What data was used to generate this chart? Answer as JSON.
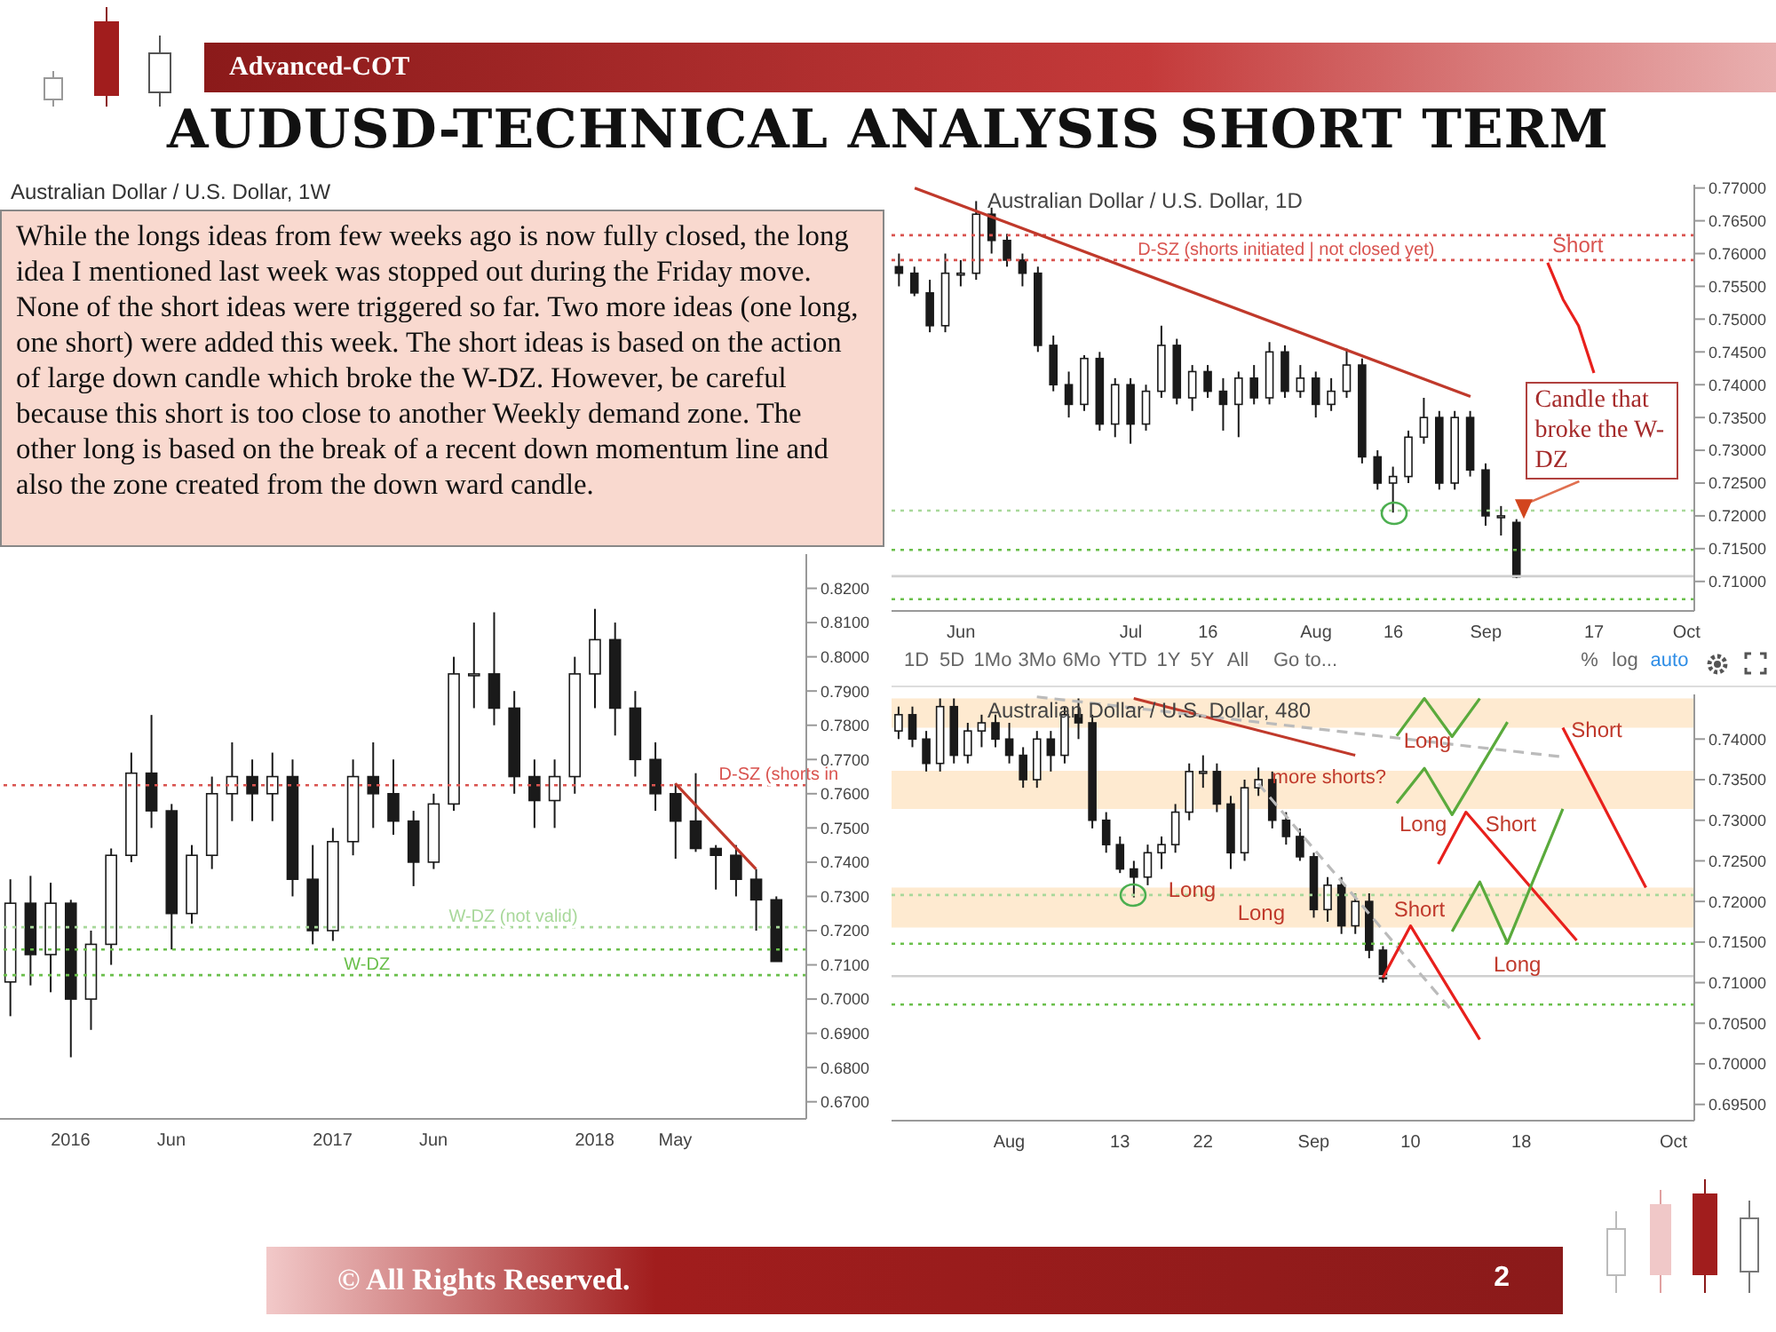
{
  "chart_data": [
    {
      "type": "other",
      "title": "AUDUSD-TECHNICAL ANALYSIS SHORT TERM",
      "subtitle": "Advanced-COT",
      "annotations": [
        "© All Rights Reserved.",
        "2"
      ]
    },
    {
      "type": "candlestick",
      "title": "Australian Dollar / U.S. Dollar, 1W",
      "color": "#1a1a1a",
      "categories": [
        null,
        null,
        null,
        "2016",
        null,
        null,
        null,
        null,
        "Jun",
        null,
        null,
        null,
        null,
        null,
        null,
        null,
        "2017",
        null,
        null,
        null,
        null,
        "Jun",
        null,
        null,
        null,
        null,
        null,
        null,
        null,
        "2018",
        null,
        null,
        null,
        "May",
        null,
        null,
        null,
        null,
        null,
        null
      ],
      "ohlc": [
        [
          0.705,
          0.735,
          0.695,
          0.728
        ],
        [
          0.728,
          0.736,
          0.704,
          0.713
        ],
        [
          0.713,
          0.734,
          0.702,
          0.728
        ],
        [
          0.728,
          0.729,
          0.683,
          0.7
        ],
        [
          0.7,
          0.72,
          0.691,
          0.716
        ],
        [
          0.716,
          0.744,
          0.71,
          0.742
        ],
        [
          0.742,
          0.772,
          0.74,
          0.766
        ],
        [
          0.766,
          0.783,
          0.75,
          0.755
        ],
        [
          0.755,
          0.757,
          0.7145,
          0.725
        ],
        [
          0.725,
          0.745,
          0.722,
          0.742
        ],
        [
          0.742,
          0.765,
          0.738,
          0.76
        ],
        [
          0.76,
          0.775,
          0.752,
          0.765
        ],
        [
          0.765,
          0.77,
          0.752,
          0.76
        ],
        [
          0.76,
          0.772,
          0.752,
          0.765
        ],
        [
          0.765,
          0.77,
          0.73,
          0.735
        ],
        [
          0.735,
          0.745,
          0.716,
          0.72
        ],
        [
          0.72,
          0.75,
          0.717,
          0.746
        ],
        [
          0.746,
          0.77,
          0.742,
          0.765
        ],
        [
          0.765,
          0.775,
          0.75,
          0.76
        ],
        [
          0.76,
          0.77,
          0.748,
          0.752
        ],
        [
          0.752,
          0.755,
          0.733,
          0.74
        ],
        [
          0.74,
          0.76,
          0.738,
          0.757
        ],
        [
          0.757,
          0.8,
          0.755,
          0.795
        ],
        [
          0.795,
          0.81,
          0.785,
          0.795
        ],
        [
          0.795,
          0.813,
          0.78,
          0.785
        ],
        [
          0.785,
          0.79,
          0.76,
          0.765
        ],
        [
          0.765,
          0.77,
          0.75,
          0.758
        ],
        [
          0.758,
          0.77,
          0.75,
          0.765
        ],
        [
          0.765,
          0.8,
          0.76,
          0.795
        ],
        [
          0.795,
          0.814,
          0.785,
          0.805
        ],
        [
          0.805,
          0.81,
          0.777,
          0.785
        ],
        [
          0.785,
          0.79,
          0.765,
          0.77
        ],
        [
          0.77,
          0.775,
          0.755,
          0.76
        ],
        [
          0.76,
          0.763,
          0.741,
          0.752
        ],
        [
          0.752,
          0.766,
          0.743,
          0.744
        ],
        [
          0.744,
          0.745,
          0.732,
          0.742
        ],
        [
          0.742,
          0.745,
          0.73,
          0.735
        ],
        [
          0.735,
          0.738,
          0.72,
          0.729
        ],
        [
          0.729,
          0.73,
          0.711,
          0.711
        ],
        null
      ],
      "ylim": [
        0.665,
        0.83
      ],
      "yticks": [
        {
          "value": 0.67,
          "label": "0.6700"
        },
        {
          "value": 0.68,
          "label": "0.6800"
        },
        {
          "value": 0.69,
          "label": "0.6900"
        },
        {
          "value": 0.7,
          "label": "0.7000"
        },
        {
          "value": 0.71,
          "label": "0.7100"
        },
        {
          "value": 0.72,
          "label": "0.7200"
        },
        {
          "value": 0.73,
          "label": "0.7300"
        },
        {
          "value": 0.74,
          "label": "0.7400"
        },
        {
          "value": 0.75,
          "label": "0.7500"
        },
        {
          "value": 0.76,
          "label": "0.7600"
        },
        {
          "value": 0.77,
          "label": "0.7700"
        },
        {
          "value": 0.78,
          "label": "0.7800"
        },
        {
          "value": 0.79,
          "label": "0.7900"
        },
        {
          "value": 0.8,
          "label": "0.8000"
        },
        {
          "value": 0.81,
          "label": "0.8100"
        },
        {
          "value": 0.82,
          "label": "0.8200"
        }
      ],
      "series": [
        {
          "type": "line",
          "color": "#c0392b",
          "values": [
            null,
            null,
            null,
            null,
            null,
            null,
            null,
            null,
            null,
            null,
            null,
            null,
            null,
            null,
            null,
            null,
            null,
            null,
            null,
            null,
            null,
            null,
            null,
            null,
            null,
            null,
            null,
            null,
            null,
            null,
            null,
            null,
            null,
            0.763,
            null,
            null,
            null,
            0.738,
            null,
            null
          ]
        }
      ],
      "ref_lines": [
        {
          "axis": "y",
          "value": 0.7625,
          "label": "D-SZ (shorts in",
          "color": "#d9534f",
          "line_style": "dotted"
        },
        {
          "axis": "y",
          "value": 0.721,
          "label": "W-DZ (not valid)",
          "color": "#a8d89a",
          "line_style": "dotted"
        },
        {
          "axis": "y",
          "value": 0.7145,
          "color": "#6abf4b",
          "line_style": "dotted"
        },
        {
          "axis": "y",
          "value": 0.707,
          "label": "W-DZ",
          "color": "#6abf4b",
          "line_style": "dotted"
        }
      ],
      "annotations": [
        "While the longs ideas from few weeks ago is now fully closed, the long idea I mentioned last week was stopped out during the Friday move. None of the short ideas were triggered so far. Two more ideas (one long, one short) were added this week. The short ideas is based on the action of large down candle which broke the W-DZ. However, be careful because this short is too close to another Weekly demand zone. The other long is based on the break of a recent down momentum line and also the zone created from the down ward candle."
      ]
    },
    {
      "type": "candlestick",
      "title": "Australian Dollar / U.S. Dollar, 1D",
      "color": "#1a1a1a",
      "categories": [
        null,
        null,
        null,
        null,
        "Jun",
        null,
        null,
        null,
        null,
        null,
        null,
        null,
        null,
        null,
        null,
        "Jul",
        null,
        null,
        null,
        null,
        "16",
        null,
        null,
        null,
        null,
        null,
        null,
        "Aug",
        null,
        null,
        null,
        null,
        "16",
        null,
        null,
        null,
        null,
        null,
        "Sep",
        null,
        null,
        null,
        null,
        null,
        null,
        "17",
        null,
        null,
        null,
        null,
        null,
        "Oct"
      ],
      "ohlc": [
        [
          0.758,
          0.76,
          0.755,
          0.757
        ],
        [
          0.757,
          0.758,
          0.7535,
          0.754
        ],
        [
          0.754,
          0.756,
          0.748,
          0.749
        ],
        [
          0.749,
          0.76,
          0.748,
          0.757
        ],
        [
          0.757,
          0.759,
          0.755,
          0.757
        ],
        [
          0.757,
          0.768,
          0.756,
          0.766
        ],
        [
          0.766,
          0.767,
          0.76,
          0.762
        ],
        [
          0.762,
          0.763,
          0.758,
          0.759
        ],
        [
          0.759,
          0.76,
          0.755,
          0.757
        ],
        [
          0.757,
          0.758,
          0.745,
          0.746
        ],
        [
          0.746,
          0.7475,
          0.739,
          0.74
        ],
        [
          0.74,
          0.742,
          0.735,
          0.737
        ],
        [
          0.737,
          0.7445,
          0.736,
          0.744
        ],
        [
          0.744,
          0.745,
          0.733,
          0.734
        ],
        [
          0.734,
          0.741,
          0.732,
          0.74
        ],
        [
          0.74,
          0.741,
          0.731,
          0.734
        ],
        [
          0.734,
          0.74,
          0.733,
          0.739
        ],
        [
          0.739,
          0.749,
          0.738,
          0.746
        ],
        [
          0.746,
          0.747,
          0.737,
          0.738
        ],
        [
          0.738,
          0.743,
          0.736,
          0.742
        ],
        [
          0.742,
          0.743,
          0.738,
          0.739
        ],
        [
          0.739,
          0.741,
          0.733,
          0.737
        ],
        [
          0.737,
          0.742,
          0.732,
          0.741
        ],
        [
          0.741,
          0.743,
          0.737,
          0.738
        ],
        [
          0.738,
          0.7465,
          0.737,
          0.745
        ],
        [
          0.745,
          0.746,
          0.738,
          0.739
        ],
        [
          0.739,
          0.743,
          0.738,
          0.741
        ],
        [
          0.741,
          0.742,
          0.735,
          0.737
        ],
        [
          0.737,
          0.741,
          0.736,
          0.739
        ],
        [
          0.739,
          0.7455,
          0.738,
          0.743
        ],
        [
          0.743,
          0.744,
          0.728,
          0.729
        ],
        [
          0.729,
          0.73,
          0.724,
          0.725
        ],
        [
          0.725,
          0.7275,
          0.7205,
          0.726
        ],
        [
          0.726,
          0.733,
          0.725,
          0.732
        ],
        [
          0.732,
          0.738,
          0.731,
          0.735
        ],
        [
          0.735,
          0.736,
          0.724,
          0.725
        ],
        [
          0.725,
          0.736,
          0.724,
          0.735
        ],
        [
          0.735,
          0.736,
          0.726,
          0.727
        ],
        [
          0.727,
          0.728,
          0.7185,
          0.72
        ],
        [
          0.72,
          0.7215,
          0.717,
          0.72
        ],
        [
          0.719,
          0.7195,
          0.7105,
          0.7107
        ],
        null,
        null,
        null,
        null,
        null,
        null,
        null,
        null,
        null,
        null,
        null
      ],
      "ylim": [
        0.7055,
        0.7705
      ],
      "yticks": [
        {
          "value": 0.71,
          "label": "0.71000"
        },
        {
          "value": 0.715,
          "label": "0.71500"
        },
        {
          "value": 0.72,
          "label": "0.72000"
        },
        {
          "value": 0.725,
          "label": "0.72500"
        },
        {
          "value": 0.73,
          "label": "0.73000"
        },
        {
          "value": 0.735,
          "label": "0.73500"
        },
        {
          "value": 0.74,
          "label": "0.74000"
        },
        {
          "value": 0.745,
          "label": "0.74500"
        },
        {
          "value": 0.75,
          "label": "0.75000"
        },
        {
          "value": 0.755,
          "label": "0.75500"
        },
        {
          "value": 0.76,
          "label": "0.76000"
        },
        {
          "value": 0.765,
          "label": "0.76500"
        },
        {
          "value": 0.77,
          "label": "0.77000"
        }
      ],
      "series": [
        {
          "type": "line",
          "color": "#c0392b",
          "values": [
            null,
            0.77,
            null,
            null,
            null,
            null,
            null,
            null,
            null,
            null,
            null,
            null,
            null,
            null,
            null,
            null,
            null,
            null,
            null,
            null,
            null,
            null,
            null,
            null,
            null,
            null,
            null,
            null,
            null,
            null,
            null,
            null,
            null,
            null,
            null,
            null,
            null,
            0.7382,
            null,
            null,
            null,
            null,
            null,
            null,
            null,
            null,
            null,
            null,
            null,
            null,
            null,
            null
          ]
        },
        {
          "type": "line",
          "color": "#e8201c",
          "values": [
            null,
            null,
            null,
            null,
            null,
            null,
            null,
            null,
            null,
            null,
            null,
            null,
            null,
            null,
            null,
            null,
            null,
            null,
            null,
            null,
            null,
            null,
            null,
            null,
            null,
            null,
            null,
            null,
            null,
            null,
            null,
            null,
            null,
            null,
            null,
            null,
            null,
            null,
            null,
            null,
            null,
            null,
            0.7586,
            0.753,
            0.749,
            0.7418,
            null,
            null,
            null,
            null,
            null,
            null
          ]
        }
      ],
      "ref_lines": [
        {
          "axis": "y",
          "value": 0.7628,
          "label": "D-SZ (shorts initiated | not closed yet)",
          "color": "#d9534f",
          "line_style": "dotted"
        },
        {
          "axis": "y",
          "value": 0.759,
          "color": "#d9534f",
          "line_style": "dotted"
        },
        {
          "axis": "y",
          "value": 0.7208,
          "color": "#a8d89a",
          "line_style": "dotted"
        },
        {
          "axis": "y",
          "value": 0.7148,
          "color": "#6abf4b",
          "line_style": "dotted"
        },
        {
          "axis": "y",
          "value": 0.7073,
          "color": "#6abf4b",
          "line_style": "dotted"
        },
        {
          "axis": "y",
          "value": 0.7108,
          "color": "#cfcfcf",
          "line_style": "solid"
        }
      ],
      "annotations": [
        {
          "text": "Candle that broke the W-DZ",
          "y": 0.7195
        },
        "Short"
      ]
    },
    {
      "type": "candlestick",
      "title": "Australian Dollar / U.S. Dollar, 480",
      "color": "#1a1a1a",
      "categories": [
        null,
        null,
        null,
        null,
        null,
        null,
        null,
        null,
        "Aug",
        null,
        null,
        null,
        null,
        null,
        null,
        null,
        "13",
        null,
        null,
        null,
        null,
        null,
        "22",
        null,
        null,
        null,
        null,
        null,
        null,
        null,
        "Sep",
        null,
        null,
        null,
        null,
        null,
        null,
        "10",
        null,
        null,
        null,
        null,
        null,
        null,
        null,
        "18",
        null,
        null,
        null,
        null,
        null,
        null,
        null,
        null,
        null,
        null,
        "Oct",
        null
      ],
      "ohlc": [
        [
          0.741,
          0.744,
          0.74,
          0.743
        ],
        [
          0.743,
          0.744,
          0.739,
          0.74
        ],
        [
          0.74,
          0.741,
          0.736,
          0.737
        ],
        [
          0.737,
          0.745,
          0.736,
          0.744
        ],
        [
          0.744,
          0.745,
          0.737,
          0.738
        ],
        [
          0.738,
          0.742,
          0.737,
          0.741
        ],
        [
          0.741,
          0.743,
          0.739,
          0.742
        ],
        [
          0.742,
          0.743,
          0.739,
          0.74
        ],
        [
          0.74,
          0.742,
          0.737,
          0.738
        ],
        [
          0.738,
          0.739,
          0.734,
          0.735
        ],
        [
          0.735,
          0.741,
          0.734,
          0.74
        ],
        [
          0.74,
          0.741,
          0.736,
          0.738
        ],
        [
          0.738,
          0.744,
          0.737,
          0.743
        ],
        [
          0.743,
          0.745,
          0.74,
          0.742
        ],
        [
          0.742,
          0.743,
          0.729,
          0.73
        ],
        [
          0.73,
          0.731,
          0.726,
          0.727
        ],
        [
          0.727,
          0.728,
          0.7235,
          0.724
        ],
        [
          0.724,
          0.725,
          0.7205,
          0.723
        ],
        [
          0.723,
          0.727,
          0.722,
          0.726
        ],
        [
          0.726,
          0.728,
          0.724,
          0.727
        ],
        [
          0.727,
          0.732,
          0.726,
          0.731
        ],
        [
          0.731,
          0.737,
          0.73,
          0.736
        ],
        [
          0.736,
          0.738,
          0.734,
          0.736
        ],
        [
          0.736,
          0.737,
          0.731,
          0.732
        ],
        [
          0.732,
          0.733,
          0.724,
          0.726
        ],
        [
          0.726,
          0.735,
          0.725,
          0.734
        ],
        [
          0.734,
          0.7365,
          0.733,
          0.735
        ],
        [
          0.735,
          0.736,
          0.729,
          0.73
        ],
        [
          0.73,
          0.731,
          0.727,
          0.728
        ],
        [
          0.728,
          0.729,
          0.725,
          0.7255
        ],
        [
          0.7255,
          0.726,
          0.718,
          0.719
        ],
        [
          0.719,
          0.723,
          0.7175,
          0.722
        ],
        [
          0.722,
          0.723,
          0.716,
          0.717
        ],
        [
          0.717,
          0.721,
          0.716,
          0.72
        ],
        [
          0.72,
          0.721,
          0.713,
          0.714
        ],
        [
          0.714,
          0.7145,
          0.71,
          0.7105
        ],
        null,
        null,
        null,
        null,
        null,
        null,
        null,
        null,
        null,
        null,
        null,
        null,
        null,
        null,
        null,
        null,
        null,
        null,
        null,
        null,
        null,
        null
      ],
      "ylim": [
        0.693,
        0.7455
      ],
      "yticks": [
        {
          "value": 0.695,
          "label": "0.69500"
        },
        {
          "value": 0.7,
          "label": "0.70000"
        },
        {
          "value": 0.705,
          "label": "0.70500"
        },
        {
          "value": 0.71,
          "label": "0.71000"
        },
        {
          "value": 0.715,
          "label": "0.71500"
        },
        {
          "value": 0.72,
          "label": "0.72000"
        },
        {
          "value": 0.725,
          "label": "0.72500"
        },
        {
          "value": 0.73,
          "label": "0.73000"
        },
        {
          "value": 0.735,
          "label": "0.73500"
        },
        {
          "value": 0.74,
          "label": "0.74000"
        }
      ],
      "series": [
        {
          "type": "line",
          "color": "#c0392b",
          "values": [
            null,
            null,
            null,
            null,
            null,
            null,
            null,
            null,
            null,
            null,
            null,
            null,
            null,
            null,
            null,
            null,
            null,
            0.745,
            null,
            null,
            null,
            null,
            null,
            null,
            null,
            null,
            null,
            null,
            null,
            null,
            null,
            null,
            null,
            0.738,
            null,
            null,
            null,
            null,
            null,
            null,
            null,
            null,
            null,
            null,
            null,
            null,
            null,
            null,
            null,
            null,
            null,
            null,
            null,
            null,
            null,
            null,
            null,
            null
          ]
        },
        {
          "type": "line",
          "color": "#bbbbbb",
          "line_style": "dashed",
          "values": [
            null,
            null,
            null,
            null,
            null,
            null,
            null,
            null,
            null,
            null,
            0.7452,
            null,
            null,
            null,
            null,
            null,
            null,
            null,
            null,
            null,
            null,
            null,
            null,
            null,
            null,
            null,
            null,
            null,
            null,
            null,
            null,
            null,
            null,
            null,
            null,
            null,
            null,
            null,
            null,
            null,
            null,
            null,
            null,
            null,
            null,
            null,
            null,
            null,
            0.7378,
            null,
            null,
            null,
            null,
            null,
            null,
            null,
            null,
            null
          ]
        },
        {
          "type": "line",
          "color": "#bbbbbb",
          "line_style": "dashed",
          "values": [
            null,
            null,
            null,
            null,
            null,
            null,
            null,
            null,
            null,
            null,
            null,
            null,
            null,
            null,
            null,
            null,
            null,
            null,
            null,
            null,
            null,
            null,
            null,
            null,
            null,
            null,
            0.7345,
            null,
            null,
            null,
            null,
            null,
            null,
            null,
            null,
            null,
            null,
            null,
            null,
            null,
            0.7065,
            null,
            null,
            null,
            null,
            null,
            null,
            null,
            null,
            null,
            null,
            null,
            null,
            null,
            null,
            null,
            null,
            null
          ]
        },
        {
          "type": "line",
          "color": "#5aaa3c",
          "values": [
            null,
            null,
            null,
            null,
            null,
            null,
            null,
            null,
            null,
            null,
            null,
            null,
            null,
            null,
            null,
            null,
            null,
            null,
            null,
            null,
            null,
            null,
            null,
            null,
            null,
            null,
            null,
            null,
            null,
            null,
            null,
            null,
            null,
            null,
            null,
            null,
            0.7404,
            null,
            0.745,
            null,
            0.7403,
            null,
            0.745,
            null,
            null,
            null,
            null,
            null,
            null,
            null,
            null,
            null,
            null,
            null,
            null,
            null,
            null,
            null
          ]
        },
        {
          "type": "line",
          "color": "#5aaa3c",
          "values": [
            null,
            null,
            null,
            null,
            null,
            null,
            null,
            null,
            null,
            null,
            null,
            null,
            null,
            null,
            null,
            null,
            null,
            null,
            null,
            null,
            null,
            null,
            null,
            null,
            null,
            null,
            null,
            null,
            null,
            null,
            null,
            null,
            null,
            null,
            null,
            null,
            0.7321,
            null,
            0.7364,
            null,
            0.7307,
            null,
            null,
            null,
            0.7421,
            null,
            null,
            null,
            null,
            null,
            null,
            null,
            null,
            null,
            null,
            null,
            null,
            null
          ]
        },
        {
          "type": "line",
          "color": "#e8201c",
          "values": [
            null,
            null,
            null,
            null,
            null,
            null,
            null,
            null,
            null,
            null,
            null,
            null,
            null,
            null,
            null,
            null,
            null,
            null,
            null,
            null,
            null,
            null,
            null,
            null,
            null,
            null,
            null,
            null,
            null,
            null,
            null,
            null,
            null,
            null,
            null,
            null,
            null,
            null,
            null,
            0.7246,
            null,
            0.731,
            null,
            null,
            null,
            null,
            null,
            null,
            null,
            0.7152,
            null,
            null,
            null,
            null,
            null,
            null,
            null,
            null
          ]
        },
        {
          "type": "line",
          "color": "#5aaa3c",
          "values": [
            null,
            null,
            null,
            null,
            null,
            null,
            null,
            null,
            null,
            null,
            null,
            null,
            null,
            null,
            null,
            null,
            null,
            null,
            null,
            null,
            null,
            null,
            null,
            null,
            null,
            null,
            null,
            null,
            null,
            null,
            null,
            null,
            null,
            null,
            null,
            null,
            null,
            null,
            null,
            null,
            0.7163,
            null,
            0.7224,
            null,
            0.7149,
            null,
            null,
            null,
            0.7314,
            null,
            null,
            null,
            null,
            null,
            null,
            null,
            null,
            null
          ]
        },
        {
          "type": "line",
          "color": "#e8201c",
          "values": [
            null,
            null,
            null,
            null,
            null,
            null,
            null,
            null,
            null,
            null,
            null,
            null,
            null,
            null,
            null,
            null,
            null,
            null,
            null,
            null,
            null,
            null,
            null,
            null,
            null,
            null,
            null,
            null,
            null,
            null,
            null,
            null,
            null,
            null,
            null,
            0.7106,
            null,
            0.717,
            null,
            null,
            null,
            null,
            0.703,
            null,
            null,
            null,
            null,
            null,
            null,
            null,
            null,
            null,
            null,
            null,
            null,
            null,
            null,
            null
          ]
        },
        {
          "type": "line",
          "color": "#e8201c",
          "values": [
            null,
            null,
            null,
            null,
            null,
            null,
            null,
            null,
            null,
            null,
            null,
            null,
            null,
            null,
            null,
            null,
            null,
            null,
            null,
            null,
            null,
            null,
            null,
            null,
            null,
            null,
            null,
            null,
            null,
            null,
            null,
            null,
            null,
            null,
            null,
            null,
            null,
            null,
            null,
            null,
            null,
            null,
            null,
            null,
            null,
            null,
            null,
            null,
            0.7414,
            null,
            null,
            null,
            null,
            null,
            0.7217,
            null,
            null,
            null
          ]
        }
      ],
      "bands": [
        {
          "axis": "y",
          "from": 0.7414,
          "to": 0.745,
          "color": "#fde3c0"
        },
        {
          "axis": "y",
          "from": 0.7314,
          "to": 0.7361,
          "color": "#fde3c0"
        },
        {
          "axis": "y",
          "from": 0.7168,
          "to": 0.7217,
          "color": "#fde3c0"
        }
      ],
      "ref_lines": [
        {
          "axis": "y",
          "value": 0.7208,
          "color": "#a8d89a",
          "line_style": "dotted"
        },
        {
          "axis": "y",
          "value": 0.7148,
          "color": "#6abf4b",
          "line_style": "dotted"
        },
        {
          "axis": "y",
          "value": 0.7073,
          "color": "#6abf4b",
          "line_style": "dotted"
        },
        {
          "axis": "y",
          "value": 0.7108,
          "color": "#cfcfcf",
          "line_style": "solid"
        }
      ],
      "annotations": [
        "1D",
        "5D",
        "1Mo",
        "3Mo",
        "6Mo",
        "YTD",
        "1Y",
        "5Y",
        "All",
        "Go to...",
        "%",
        "log",
        "auto",
        "more shorts?",
        "Long",
        "Long",
        "Long",
        "Long",
        "Long",
        "Short",
        "Short",
        "Short"
      ]
    }
  ]
}
